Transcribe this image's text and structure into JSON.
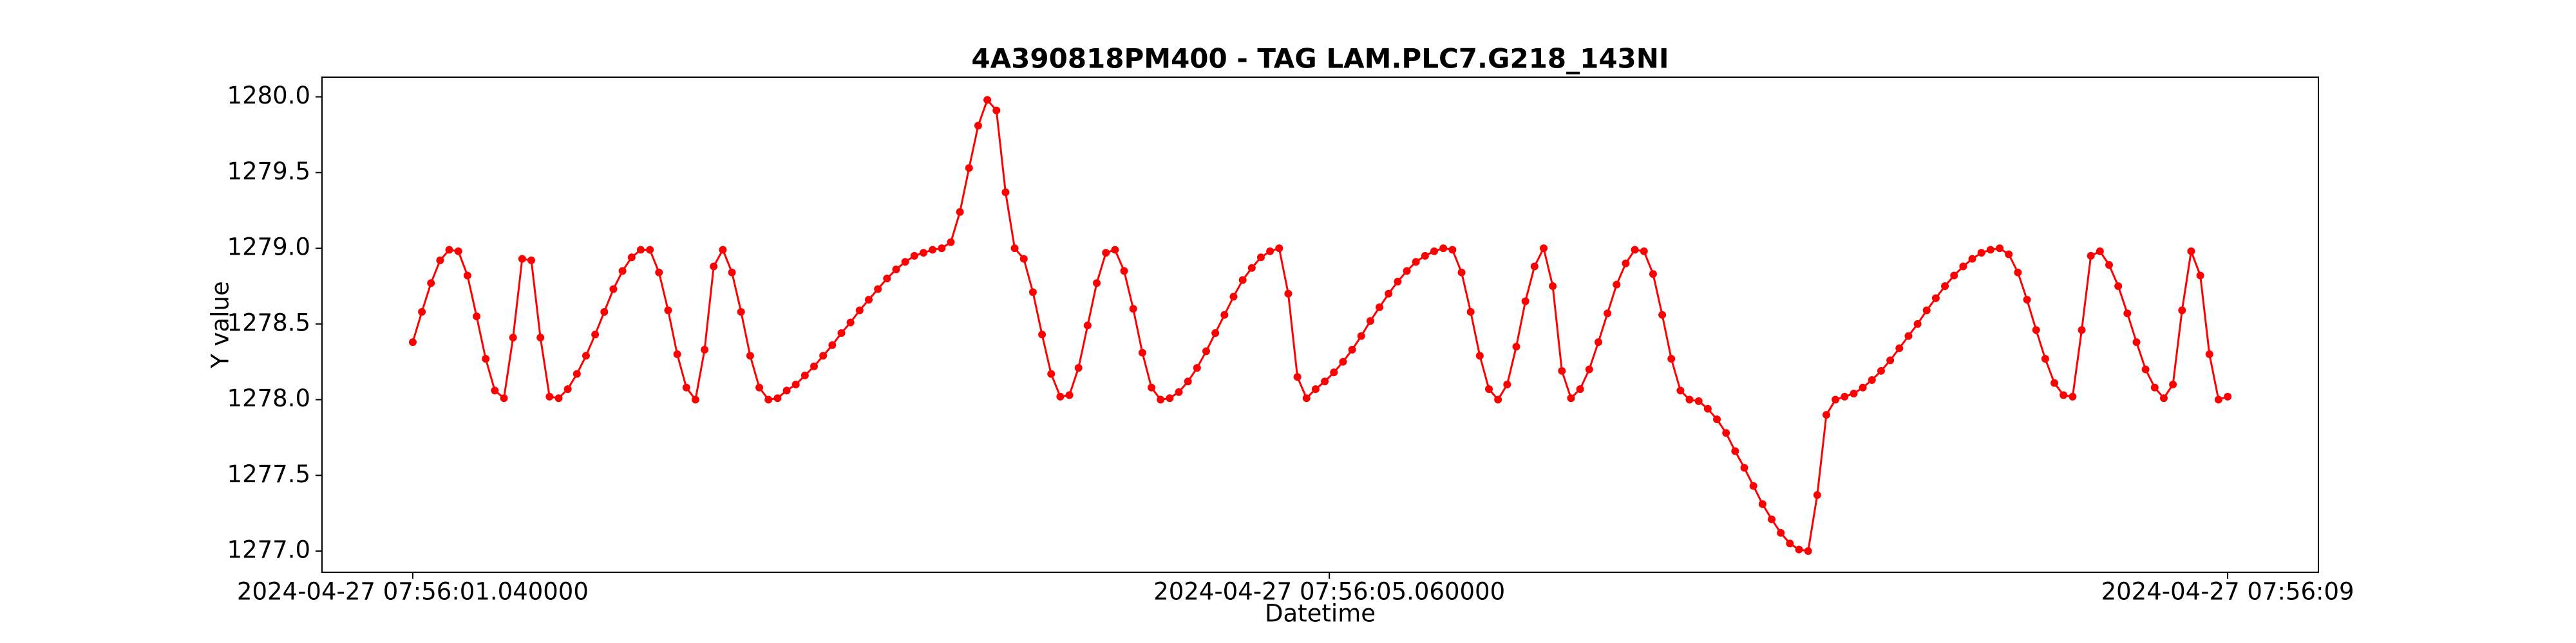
{
  "chart_data": {
    "type": "line",
    "title": "4A390818PM400 - TAG LAM.PLC7.G218_143NI",
    "x_label": "Datetime",
    "y_label": "Y value",
    "color": "red",
    "marker": true,
    "grid": false,
    "x": [
      "2024-04-27 07:56:01.04",
      "2024-04-27 07:56:01.08",
      "2024-04-27 07:56:01.12",
      "2024-04-27 07:56:01.16",
      "2024-04-27 07:56:01.20",
      "2024-04-27 07:56:01.24",
      "2024-04-27 07:56:01.28",
      "2024-04-27 07:56:01.32",
      "2024-04-27 07:56:01.36",
      "2024-04-27 07:56:01.40",
      "2024-04-27 07:56:01.44",
      "2024-04-27 07:56:01.48",
      "2024-04-27 07:56:01.52",
      "2024-04-27 07:56:01.56",
      "2024-04-27 07:56:01.60",
      "2024-04-27 07:56:01.64",
      "2024-04-27 07:56:01.68",
      "2024-04-27 07:56:01.72",
      "2024-04-27 07:56:01.76",
      "2024-04-27 07:56:01.80",
      "2024-04-27 07:56:01.84",
      "2024-04-27 07:56:01.88",
      "2024-04-27 07:56:01.92",
      "2024-04-27 07:56:01.96",
      "2024-04-27 07:56:02.00",
      "2024-04-27 07:56:02.04",
      "2024-04-27 07:56:02.08",
      "2024-04-27 07:56:02.12",
      "2024-04-27 07:56:02.16",
      "2024-04-27 07:56:02.20",
      "2024-04-27 07:56:02.24",
      "2024-04-27 07:56:02.28",
      "2024-04-27 07:56:02.32",
      "2024-04-27 07:56:02.36",
      "2024-04-27 07:56:02.40",
      "2024-04-27 07:56:02.44",
      "2024-04-27 07:56:02.48",
      "2024-04-27 07:56:02.52",
      "2024-04-27 07:56:02.56",
      "2024-04-27 07:56:02.60",
      "2024-04-27 07:56:02.64",
      "2024-04-27 07:56:02.68",
      "2024-04-27 07:56:02.72",
      "2024-04-27 07:56:02.76",
      "2024-04-27 07:56:02.80",
      "2024-04-27 07:56:02.84",
      "2024-04-27 07:56:02.88",
      "2024-04-27 07:56:02.92",
      "2024-04-27 07:56:02.96",
      "2024-04-27 07:56:03.00",
      "2024-04-27 07:56:03.04",
      "2024-04-27 07:56:03.08",
      "2024-04-27 07:56:03.12",
      "2024-04-27 07:56:03.16",
      "2024-04-27 07:56:03.20",
      "2024-04-27 07:56:03.24",
      "2024-04-27 07:56:03.28",
      "2024-04-27 07:56:03.32",
      "2024-04-27 07:56:03.36",
      "2024-04-27 07:56:03.40",
      "2024-04-27 07:56:03.44",
      "2024-04-27 07:56:03.48",
      "2024-04-27 07:56:03.52",
      "2024-04-27 07:56:03.56",
      "2024-04-27 07:56:03.60",
      "2024-04-27 07:56:03.64",
      "2024-04-27 07:56:03.68",
      "2024-04-27 07:56:03.72",
      "2024-04-27 07:56:03.76",
      "2024-04-27 07:56:03.80",
      "2024-04-27 07:56:03.84",
      "2024-04-27 07:56:03.88",
      "2024-04-27 07:56:03.92",
      "2024-04-27 07:56:03.96",
      "2024-04-27 07:56:04.00",
      "2024-04-27 07:56:04.04",
      "2024-04-27 07:56:04.08",
      "2024-04-27 07:56:04.12",
      "2024-04-27 07:56:04.16",
      "2024-04-27 07:56:04.20",
      "2024-04-27 07:56:04.24",
      "2024-04-27 07:56:04.28",
      "2024-04-27 07:56:04.32",
      "2024-04-27 07:56:04.36",
      "2024-04-27 07:56:04.40",
      "2024-04-27 07:56:04.44",
      "2024-04-27 07:56:04.48",
      "2024-04-27 07:56:04.52",
      "2024-04-27 07:56:04.56",
      "2024-04-27 07:56:04.60",
      "2024-04-27 07:56:04.64",
      "2024-04-27 07:56:04.68",
      "2024-04-27 07:56:04.72",
      "2024-04-27 07:56:04.76",
      "2024-04-27 07:56:04.80",
      "2024-04-27 07:56:04.84",
      "2024-04-27 07:56:04.88",
      "2024-04-27 07:56:04.92",
      "2024-04-27 07:56:04.96",
      "2024-04-27 07:56:05.00",
      "2024-04-27 07:56:05.04",
      "2024-04-27 07:56:05.08",
      "2024-04-27 07:56:05.12",
      "2024-04-27 07:56:05.16",
      "2024-04-27 07:56:05.20",
      "2024-04-27 07:56:05.24",
      "2024-04-27 07:56:05.28",
      "2024-04-27 07:56:05.32",
      "2024-04-27 07:56:05.36",
      "2024-04-27 07:56:05.40",
      "2024-04-27 07:56:05.44",
      "2024-04-27 07:56:05.48",
      "2024-04-27 07:56:05.52",
      "2024-04-27 07:56:05.56",
      "2024-04-27 07:56:05.60",
      "2024-04-27 07:56:05.64",
      "2024-04-27 07:56:05.68",
      "2024-04-27 07:56:05.72",
      "2024-04-27 07:56:05.76",
      "2024-04-27 07:56:05.80",
      "2024-04-27 07:56:05.84",
      "2024-04-27 07:56:05.88",
      "2024-04-27 07:56:05.92",
      "2024-04-27 07:56:05.96",
      "2024-04-27 07:56:06.00",
      "2024-04-27 07:56:06.04",
      "2024-04-27 07:56:06.08",
      "2024-04-27 07:56:06.12",
      "2024-04-27 07:56:06.16",
      "2024-04-27 07:56:06.20",
      "2024-04-27 07:56:06.24",
      "2024-04-27 07:56:06.28",
      "2024-04-27 07:56:06.32",
      "2024-04-27 07:56:06.36",
      "2024-04-27 07:56:06.40",
      "2024-04-27 07:56:06.44",
      "2024-04-27 07:56:06.48",
      "2024-04-27 07:56:06.52",
      "2024-04-27 07:56:06.56",
      "2024-04-27 07:56:06.60",
      "2024-04-27 07:56:06.64",
      "2024-04-27 07:56:06.68",
      "2024-04-27 07:56:06.72",
      "2024-04-27 07:56:06.76",
      "2024-04-27 07:56:06.80",
      "2024-04-27 07:56:06.84",
      "2024-04-27 07:56:06.88",
      "2024-04-27 07:56:06.92",
      "2024-04-27 07:56:06.96",
      "2024-04-27 07:56:07.00",
      "2024-04-27 07:56:07.04",
      "2024-04-27 07:56:07.08",
      "2024-04-27 07:56:07.12",
      "2024-04-27 07:56:07.16",
      "2024-04-27 07:56:07.20",
      "2024-04-27 07:56:07.24",
      "2024-04-27 07:56:07.28",
      "2024-04-27 07:56:07.32",
      "2024-04-27 07:56:07.36",
      "2024-04-27 07:56:07.40",
      "2024-04-27 07:56:07.44",
      "2024-04-27 07:56:07.48",
      "2024-04-27 07:56:07.52",
      "2024-04-27 07:56:07.56",
      "2024-04-27 07:56:07.60",
      "2024-04-27 07:56:07.64",
      "2024-04-27 07:56:07.68",
      "2024-04-27 07:56:07.72",
      "2024-04-27 07:56:07.76",
      "2024-04-27 07:56:07.80",
      "2024-04-27 07:56:07.84",
      "2024-04-27 07:56:07.88",
      "2024-04-27 07:56:07.92",
      "2024-04-27 07:56:07.96",
      "2024-04-27 07:56:08.00",
      "2024-04-27 07:56:08.04",
      "2024-04-27 07:56:08.08",
      "2024-04-27 07:56:08.12",
      "2024-04-27 07:56:08.16",
      "2024-04-27 07:56:08.20",
      "2024-04-27 07:56:08.24",
      "2024-04-27 07:56:08.28",
      "2024-04-27 07:56:08.32",
      "2024-04-27 07:56:08.36",
      "2024-04-27 07:56:08.40",
      "2024-04-27 07:56:08.44",
      "2024-04-27 07:56:08.48",
      "2024-04-27 07:56:08.52",
      "2024-04-27 07:56:08.56",
      "2024-04-27 07:56:08.60",
      "2024-04-27 07:56:08.64",
      "2024-04-27 07:56:08.68",
      "2024-04-27 07:56:08.72",
      "2024-04-27 07:56:08.76",
      "2024-04-27 07:56:08.80",
      "2024-04-27 07:56:08.84",
      "2024-04-27 07:56:08.88",
      "2024-04-27 07:56:08.92",
      "2024-04-27 07:56:08.96",
      "2024-04-27 07:56:09.00"
    ],
    "values": [
      1278.38,
      1278.58,
      1278.77,
      1278.92,
      1278.99,
      1278.98,
      1278.82,
      1278.55,
      1278.27,
      1278.06,
      1278.01,
      1278.41,
      1278.93,
      1278.92,
      1278.41,
      1278.02,
      1278.01,
      1278.07,
      1278.17,
      1278.29,
      1278.43,
      1278.58,
      1278.73,
      1278.85,
      1278.94,
      1278.99,
      1278.99,
      1278.84,
      1278.59,
      1278.3,
      1278.08,
      1278.0,
      1278.33,
      1278.88,
      1278.99,
      1278.84,
      1278.58,
      1278.29,
      1278.08,
      1278.0,
      1278.01,
      1278.06,
      1278.1,
      1278.16,
      1278.22,
      1278.29,
      1278.36,
      1278.44,
      1278.51,
      1278.59,
      1278.66,
      1278.73,
      1278.8,
      1278.86,
      1278.91,
      1278.95,
      1278.97,
      1278.99,
      1279.0,
      1279.04,
      1279.24,
      1279.53,
      1279.81,
      1279.98,
      1279.91,
      1279.37,
      1279.0,
      1278.93,
      1278.71,
      1278.43,
      1278.17,
      1278.02,
      1278.03,
      1278.21,
      1278.49,
      1278.77,
      1278.97,
      1278.99,
      1278.85,
      1278.6,
      1278.31,
      1278.08,
      1278.0,
      1278.01,
      1278.05,
      1278.12,
      1278.21,
      1278.32,
      1278.44,
      1278.56,
      1278.68,
      1278.79,
      1278.87,
      1278.94,
      1278.98,
      1279.0,
      1278.7,
      1278.15,
      1278.01,
      1278.07,
      1278.12,
      1278.18,
      1278.25,
      1278.33,
      1278.42,
      1278.52,
      1278.61,
      1278.7,
      1278.78,
      1278.85,
      1278.91,
      1278.95,
      1278.98,
      1279.0,
      1278.99,
      1278.84,
      1278.58,
      1278.29,
      1278.07,
      1278.0,
      1278.1,
      1278.35,
      1278.65,
      1278.88,
      1279.0,
      1278.75,
      1278.19,
      1278.01,
      1278.07,
      1278.2,
      1278.38,
      1278.57,
      1278.76,
      1278.9,
      1278.99,
      1278.98,
      1278.83,
      1278.56,
      1278.27,
      1278.06,
      1278.0,
      1277.99,
      1277.94,
      1277.87,
      1277.78,
      1277.66,
      1277.55,
      1277.43,
      1277.31,
      1277.21,
      1277.12,
      1277.05,
      1277.01,
      1277.0,
      1277.37,
      1277.9,
      1278.0,
      1278.02,
      1278.04,
      1278.08,
      1278.13,
      1278.19,
      1278.26,
      1278.34,
      1278.42,
      1278.5,
      1278.59,
      1278.67,
      1278.75,
      1278.82,
      1278.88,
      1278.93,
      1278.97,
      1278.99,
      1279.0,
      1278.96,
      1278.84,
      1278.66,
      1278.46,
      1278.27,
      1278.11,
      1278.03,
      1278.02,
      1278.46,
      1278.95,
      1278.98,
      1278.89,
      1278.75,
      1278.57,
      1278.38,
      1278.2,
      1278.08,
      1278.01,
      1278.1,
      1278.59,
      1278.98,
      1278.82,
      1278.3,
      1278.0,
      1278.02
    ],
    "xlim": [
      "2024-04-27 07:56:00.642",
      "2024-04-27 07:56:09.398"
    ],
    "xticks": [
      {
        "value": "2024-04-27 07:56:01.04",
        "label": "2024-04-27 07:56:01.040000"
      },
      {
        "value": "2024-04-27 07:56:05.06",
        "label": "2024-04-27 07:56:05.060000"
      },
      {
        "value": "2024-04-27 07:56:09.00",
        "label": "2024-04-27 07:56:09"
      }
    ],
    "ylim": [
      1276.86,
      1280.13
    ],
    "yticks": [
      {
        "value": 1277,
        "label": "1277.0"
      },
      1277.5,
      {
        "value": 1278,
        "label": "1278.0"
      },
      1278.5,
      {
        "value": 1279,
        "label": "1279.0"
      },
      1279.5,
      {
        "value": 1280,
        "label": "1280.0"
      }
    ]
  }
}
